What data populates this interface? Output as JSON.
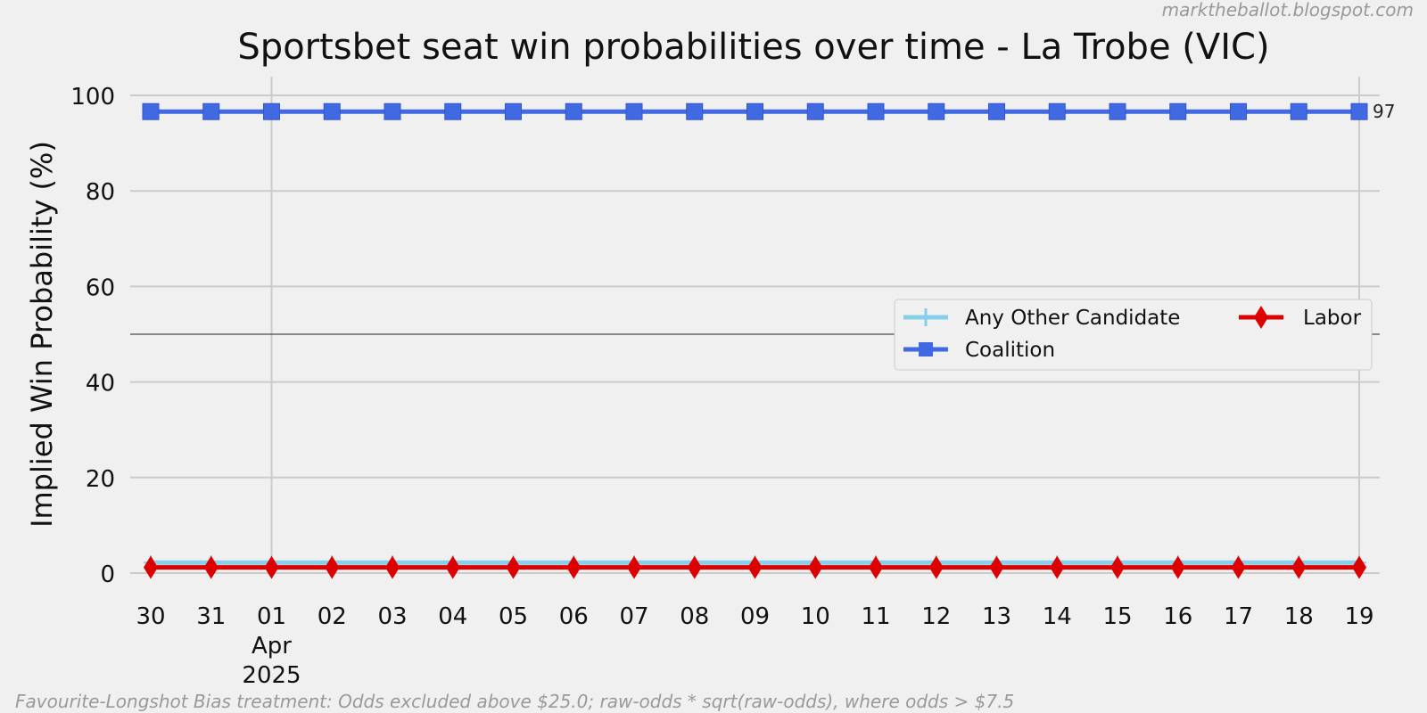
{
  "watermark": "marktheballot.blogspot.com",
  "footnote": "Favourite-Longshot Bias treatment: Odds excluded above $25.0; raw-odds * sqrt(raw-odds), where odds > $7.5",
  "chart_data": {
    "type": "line",
    "title": "Sportsbet seat win probabilities over time - La Trobe (VIC)",
    "xlabel": "",
    "ylabel": "Implied Win Probability (%)",
    "ylim": [
      0,
      100
    ],
    "yticks": [
      0,
      20,
      40,
      60,
      80,
      100
    ],
    "x": [
      "2025-03-30",
      "2025-03-31",
      "2025-04-01",
      "2025-04-02",
      "2025-04-03",
      "2025-04-04",
      "2025-04-05",
      "2025-04-06",
      "2025-04-07",
      "2025-04-08",
      "2025-04-09",
      "2025-04-10",
      "2025-04-11",
      "2025-04-12",
      "2025-04-13",
      "2025-04-14",
      "2025-04-15",
      "2025-04-16",
      "2025-04-17",
      "2025-04-18",
      "2025-04-19"
    ],
    "xtick_labels": [
      "30",
      "31",
      "01",
      "02",
      "03",
      "04",
      "05",
      "06",
      "07",
      "08",
      "09",
      "10",
      "11",
      "12",
      "13",
      "14",
      "15",
      "16",
      "17",
      "18",
      "19"
    ],
    "xtick_sublabel": {
      "index": 2,
      "month": "Apr",
      "year": "2025"
    },
    "vertical_gridlines_at": [
      2,
      20
    ],
    "reference_line": 50,
    "series": [
      {
        "name": "Any Other Candidate",
        "color": "#87ceeb",
        "marker": "plus",
        "values": [
          2.2,
          2.2,
          2.2,
          2.2,
          2.2,
          2.2,
          2.2,
          2.2,
          2.2,
          2.2,
          2.2,
          2.2,
          2.2,
          2.2,
          2.2,
          2.2,
          2.2,
          2.2,
          2.2,
          2.2,
          2.2
        ]
      },
      {
        "name": "Coalition",
        "color": "#4169e1",
        "marker": "square",
        "end_label": "97",
        "values": [
          96.6,
          96.6,
          96.6,
          96.6,
          96.6,
          96.6,
          96.6,
          96.6,
          96.6,
          96.6,
          96.6,
          96.6,
          96.6,
          96.6,
          96.6,
          96.6,
          96.6,
          96.6,
          96.6,
          96.6,
          96.6
        ]
      },
      {
        "name": "Labor",
        "color": "#dd0000",
        "marker": "diamond",
        "values": [
          1.2,
          1.2,
          1.2,
          1.2,
          1.2,
          1.2,
          1.2,
          1.2,
          1.2,
          1.2,
          1.2,
          1.2,
          1.2,
          1.2,
          1.2,
          1.2,
          1.2,
          1.2,
          1.2,
          1.2,
          1.2
        ]
      }
    ],
    "legend": {
      "position": "center-right",
      "columns": 2,
      "order": [
        "Any Other Candidate",
        "Labor",
        "Coalition"
      ]
    },
    "grid": true
  }
}
